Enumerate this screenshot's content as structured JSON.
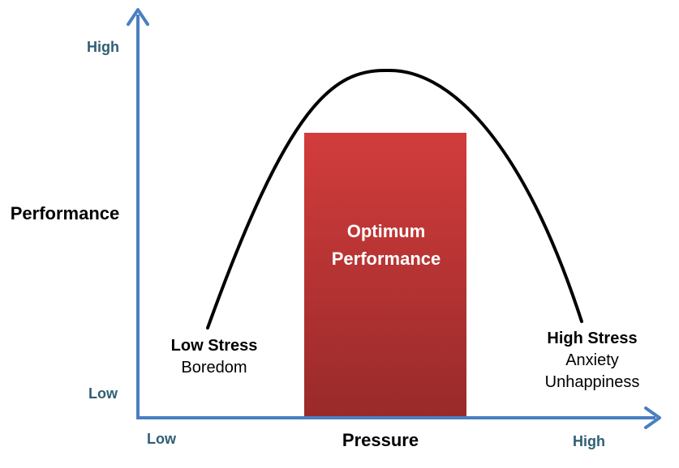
{
  "colors": {
    "axis": "#4a7fc1",
    "tick_text": "#2f5f73",
    "curve": "#000000",
    "box_top": "#d23c3c",
    "box_bottom": "#992a2a",
    "box_text": "#ffffff"
  },
  "y_axis": {
    "title": "Performance",
    "high_label": "High",
    "low_label": "Low"
  },
  "x_axis": {
    "title": "Pressure",
    "low_label": "Low",
    "high_label": "High"
  },
  "zones": {
    "low": {
      "title": "Low Stress",
      "description": "Boredom"
    },
    "optimum": {
      "line1": "Optimum",
      "line2": "Performance"
    },
    "high": {
      "title": "High Stress",
      "line1": "Anxiety",
      "line2": "Unhappiness"
    }
  }
}
